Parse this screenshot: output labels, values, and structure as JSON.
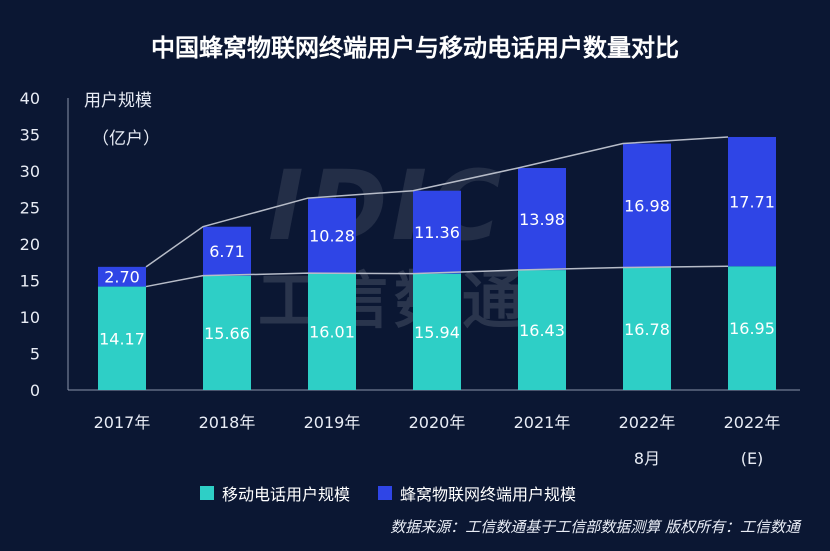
{
  "title": "中国蜂窝物联网终端用户与移动电话用户数量对比",
  "watermark": {
    "en": "IDIC",
    "cn": "工信数通"
  },
  "source": "数据来源：工信数通基于工信部数据测算   版权所有：工信数通",
  "colors": {
    "mobile": "#2ecfc6",
    "iot": "#2f45e6",
    "background": "#0b1733",
    "trend": "#b7bcc8"
  },
  "chart_data": {
    "type": "bar",
    "stacked": true,
    "categories": [
      {
        "line1": "2017年",
        "line2": ""
      },
      {
        "line1": "2018年",
        "line2": ""
      },
      {
        "line1": "2019年",
        "line2": ""
      },
      {
        "line1": "2020年",
        "line2": ""
      },
      {
        "line1": "2021年",
        "line2": ""
      },
      {
        "line1": "2022年",
        "line2": "8月"
      },
      {
        "line1": "2022年",
        "line2": "(E)"
      }
    ],
    "series": [
      {
        "name": "移动电话用户规模",
        "values": [
          14.17,
          15.66,
          16.01,
          15.94,
          16.43,
          16.78,
          16.95
        ],
        "value_labels": [
          "14.17",
          "15.66",
          "16.01",
          "15.94",
          "16.43",
          "16.78",
          "16.95"
        ]
      },
      {
        "name": "蜂窝物联网终端用户规模",
        "values": [
          2.7,
          6.71,
          10.28,
          11.36,
          13.98,
          16.98,
          17.71
        ],
        "value_labels": [
          "2.70",
          "6.71",
          "10.28",
          "11.36",
          "13.98",
          "16.98",
          "17.71"
        ]
      }
    ],
    "ylabel_line1": "用户规模",
    "ylabel_line2": "（亿户）",
    "ylim": [
      0,
      40
    ],
    "yticks": [
      0,
      5,
      10,
      15,
      20,
      25,
      30,
      35,
      40
    ],
    "trend_lines": "connect the tops of each series"
  }
}
